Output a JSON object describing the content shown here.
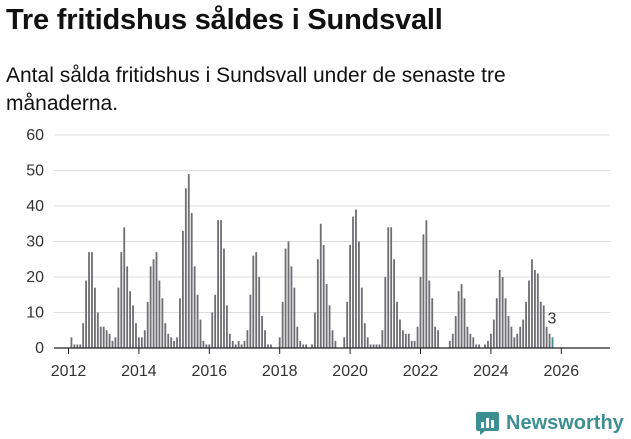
{
  "title": "Tre fritidshus såldes i Sundsvall",
  "subtitle": "Antal sålda fritidshus i Sundsvall under de senaste tre månaderna.",
  "brand": {
    "name": "Newsworthy",
    "icon": "newsworthy-logo-icon"
  },
  "colors": {
    "bar": "#6e6e73",
    "highlight": "#3d8f92",
    "grid": "#dddddd",
    "axis": "#222222"
  },
  "chart_data": {
    "type": "bar",
    "title": "Tre fritidshus såldes i Sundsvall",
    "subtitle": "Antal sålda fritidshus i Sundsvall under de senaste tre månaderna.",
    "xlabel": "",
    "ylabel": "",
    "ylim": [
      0,
      60
    ],
    "yticks": [
      0,
      10,
      20,
      30,
      40,
      50,
      60
    ],
    "xtick_labels": [
      "2012",
      "2014",
      "2016",
      "2018",
      "2020",
      "2022",
      "2024",
      "2026"
    ],
    "grid": true,
    "start": "2012-01",
    "end": "2026-02",
    "series": [
      {
        "name": "Antal sålda fritidshus (rullande tre månader)",
        "values": [
          0,
          3,
          1,
          1,
          1,
          7,
          19,
          27,
          27,
          17,
          10,
          6,
          6,
          5,
          4,
          2,
          3,
          17,
          27,
          34,
          23,
          16,
          12,
          7,
          3,
          3,
          5,
          13,
          23,
          25,
          27,
          19,
          14,
          7,
          4,
          3,
          2,
          3,
          14,
          33,
          45,
          49,
          38,
          23,
          15,
          8,
          2,
          1,
          1,
          10,
          15,
          36,
          36,
          28,
          12,
          4,
          2,
          1,
          2,
          1,
          2,
          5,
          15,
          26,
          27,
          20,
          9,
          5,
          1,
          1,
          0,
          0,
          3,
          13,
          28,
          30,
          23,
          17,
          6,
          2,
          1,
          1,
          0,
          1,
          10,
          25,
          35,
          29,
          18,
          12,
          5,
          2,
          0,
          0,
          3,
          13,
          29,
          37,
          39,
          30,
          17,
          7,
          3,
          1,
          1,
          1,
          1,
          5,
          20,
          34,
          34,
          25,
          13,
          8,
          5,
          4,
          4,
          2,
          2,
          6,
          20,
          32,
          36,
          19,
          14,
          6,
          5,
          0,
          0,
          0,
          2,
          4,
          9,
          16,
          18,
          14,
          6,
          4,
          3,
          1,
          1,
          0,
          1,
          2,
          4,
          8,
          14,
          22,
          20,
          14,
          9,
          6,
          3,
          4,
          6,
          8,
          13,
          19,
          25,
          22,
          21,
          13,
          12,
          6,
          4,
          3
        ]
      }
    ],
    "highlight": {
      "label": "3",
      "value": 3,
      "period": "2026-02"
    }
  }
}
